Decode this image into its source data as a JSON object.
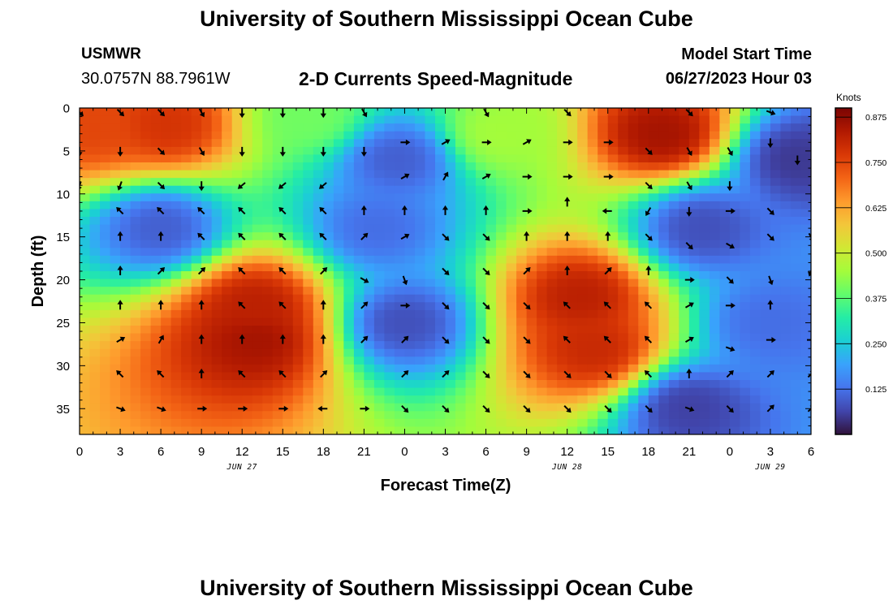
{
  "header": {
    "title": "University of Southern Mississippi Ocean Cube",
    "station": "USMWR",
    "coordinates": "30.0757N  88.7961W",
    "subtitle": "2-D Currents Speed-Magnitude",
    "model_start_label": "Model Start Time",
    "model_start_value": "06/27/2023 Hour 03"
  },
  "footer": {
    "title": "University of Southern Mississippi Ocean Cube"
  },
  "colors": {
    "colormap": [
      "#30123b",
      "#4145ab",
      "#4675ed",
      "#39a2fc",
      "#1bcfd4",
      "#24eca6",
      "#61fc6c",
      "#a4fc3b",
      "#d1e834",
      "#f3c63a",
      "#fe9b2d",
      "#f36315",
      "#d93806",
      "#b11901",
      "#7a0403"
    ]
  },
  "chart_data": {
    "type": "heatmap",
    "xlabel": "Forecast Time(Z)",
    "ylabel": "Depth (ft)",
    "x_ticks": [
      "0",
      "3",
      "6",
      "9",
      "12",
      "15",
      "18",
      "21",
      "0",
      "3",
      "6",
      "9",
      "12",
      "15",
      "18",
      "21",
      "0",
      "3",
      "6"
    ],
    "x_range_hours": [
      0,
      54
    ],
    "date_labels": [
      {
        "text": "JUN 27",
        "at_hour": 12
      },
      {
        "text": "JUN 28",
        "at_hour": 36
      },
      {
        "text": "JUN 29",
        "at_hour": 51
      }
    ],
    "y_ticks": [
      "0",
      "5",
      "10",
      "15",
      "20",
      "25",
      "30",
      "35"
    ],
    "y_range_ft": [
      0,
      38
    ],
    "colorbar": {
      "label": "Knots",
      "ticks": [
        "0.125",
        "0.250",
        "0.375",
        "0.500",
        "0.625",
        "0.750",
        "0.875"
      ],
      "range": [
        0,
        0.9
      ]
    },
    "speed_hotspots": [
      {
        "hour": 1,
        "depth": 2,
        "speed": 0.75
      },
      {
        "hour": 6.5,
        "depth": 2,
        "speed": 0.78
      },
      {
        "hour": 17,
        "depth": 1,
        "speed": 0.4
      },
      {
        "hour": 6,
        "depth": 14,
        "speed": 0.1
      },
      {
        "hour": 13,
        "depth": 23,
        "speed": 0.82
      },
      {
        "hour": 13,
        "depth": 27,
        "speed": 0.85
      },
      {
        "hour": 22,
        "depth": 14,
        "speed": 0.12
      },
      {
        "hour": 23.5,
        "depth": 6,
        "speed": 0.1
      },
      {
        "hour": 24,
        "depth": 25,
        "speed": 0.08
      },
      {
        "hour": 31,
        "depth": 3,
        "speed": 0.45
      },
      {
        "hour": 37,
        "depth": 22,
        "speed": 0.82
      },
      {
        "hour": 38,
        "depth": 28,
        "speed": 0.8
      },
      {
        "hour": 43,
        "depth": 3,
        "speed": 0.85
      },
      {
        "hour": 46,
        "depth": 14,
        "speed": 0.08
      },
      {
        "hour": 45,
        "depth": 35,
        "speed": 0.06
      },
      {
        "hour": 53,
        "depth": 6,
        "speed": 0.05
      },
      {
        "hour": 51,
        "depth": 25,
        "speed": 0.12
      }
    ],
    "vectors": [
      {
        "hour": 0,
        "depth": 0.5,
        "angle": 135
      },
      {
        "hour": 3,
        "depth": 0.5,
        "angle": 135
      },
      {
        "hour": 6,
        "depth": 0.5,
        "angle": 135
      },
      {
        "hour": 9,
        "depth": 0.5,
        "angle": 150
      },
      {
        "hour": 12,
        "depth": 0.5,
        "angle": 180
      },
      {
        "hour": 15,
        "depth": 0.5,
        "angle": 180
      },
      {
        "hour": 18,
        "depth": 0.5,
        "angle": 180
      },
      {
        "hour": 21,
        "depth": 0.5,
        "angle": 150
      },
      {
        "hour": 30,
        "depth": 0.5,
        "angle": 150
      },
      {
        "hour": 36,
        "depth": 0.5,
        "angle": 135
      },
      {
        "hour": 45,
        "depth": 0.5,
        "angle": 135
      },
      {
        "hour": 51,
        "depth": 0.5,
        "angle": 110
      },
      {
        "hour": 0,
        "depth": 5,
        "angle": 180
      },
      {
        "hour": 3,
        "depth": 5,
        "angle": 180
      },
      {
        "hour": 6,
        "depth": 5,
        "angle": 135
      },
      {
        "hour": 9,
        "depth": 5,
        "angle": 150
      },
      {
        "hour": 12,
        "depth": 5,
        "angle": 180
      },
      {
        "hour": 15,
        "depth": 5,
        "angle": 180
      },
      {
        "hour": 18,
        "depth": 5,
        "angle": 180
      },
      {
        "hour": 21,
        "depth": 5,
        "angle": 180
      },
      {
        "hour": 24,
        "depth": 4,
        "angle": 90
      },
      {
        "hour": 27,
        "depth": 4,
        "angle": 60
      },
      {
        "hour": 30,
        "depth": 4,
        "angle": 90
      },
      {
        "hour": 33,
        "depth": 4,
        "angle": 60
      },
      {
        "hour": 36,
        "depth": 4,
        "angle": 90
      },
      {
        "hour": 39,
        "depth": 4,
        "angle": 90
      },
      {
        "hour": 42,
        "depth": 5,
        "angle": 135
      },
      {
        "hour": 45,
        "depth": 5,
        "angle": 150
      },
      {
        "hour": 48,
        "depth": 5,
        "angle": 150
      },
      {
        "hour": 51,
        "depth": 4,
        "angle": 180
      },
      {
        "hour": 53,
        "depth": 6,
        "angle": 180
      },
      {
        "hour": 0,
        "depth": 9,
        "angle": 200
      },
      {
        "hour": 3,
        "depth": 9,
        "angle": 200
      },
      {
        "hour": 6,
        "depth": 9,
        "angle": 135
      },
      {
        "hour": 9,
        "depth": 9,
        "angle": 180
      },
      {
        "hour": 12,
        "depth": 9,
        "angle": 230
      },
      {
        "hour": 15,
        "depth": 9,
        "angle": 230
      },
      {
        "hour": 18,
        "depth": 9,
        "angle": 230
      },
      {
        "hour": 24,
        "depth": 8,
        "angle": 60
      },
      {
        "hour": 27,
        "depth": 8,
        "angle": 30
      },
      {
        "hour": 30,
        "depth": 8,
        "angle": 60
      },
      {
        "hour": 33,
        "depth": 8,
        "angle": 90
      },
      {
        "hour": 36,
        "depth": 8,
        "angle": 90
      },
      {
        "hour": 39,
        "depth": 8,
        "angle": 90
      },
      {
        "hour": 42,
        "depth": 9,
        "angle": 135
      },
      {
        "hour": 45,
        "depth": 9,
        "angle": 150
      },
      {
        "hour": 48,
        "depth": 9,
        "angle": 180
      },
      {
        "hour": 3,
        "depth": 12,
        "angle": 315
      },
      {
        "hour": 6,
        "depth": 12,
        "angle": 315
      },
      {
        "hour": 9,
        "depth": 12,
        "angle": 315
      },
      {
        "hour": 12,
        "depth": 12,
        "angle": 315
      },
      {
        "hour": 15,
        "depth": 12,
        "angle": 315
      },
      {
        "hour": 18,
        "depth": 12,
        "angle": 315
      },
      {
        "hour": 21,
        "depth": 12,
        "angle": 0
      },
      {
        "hour": 24,
        "depth": 12,
        "angle": 0
      },
      {
        "hour": 27,
        "depth": 12,
        "angle": 0
      },
      {
        "hour": 30,
        "depth": 12,
        "angle": 0
      },
      {
        "hour": 33,
        "depth": 12,
        "angle": 90
      },
      {
        "hour": 36,
        "depth": 11,
        "angle": 0
      },
      {
        "hour": 39,
        "depth": 12,
        "angle": 270
      },
      {
        "hour": 42,
        "depth": 12,
        "angle": 210
      },
      {
        "hour": 45,
        "depth": 12,
        "angle": 180
      },
      {
        "hour": 48,
        "depth": 12,
        "angle": 90
      },
      {
        "hour": 51,
        "depth": 12,
        "angle": 135
      },
      {
        "hour": 3,
        "depth": 15,
        "angle": 0
      },
      {
        "hour": 6,
        "depth": 15,
        "angle": 0
      },
      {
        "hour": 9,
        "depth": 15,
        "angle": 315
      },
      {
        "hour": 12,
        "depth": 15,
        "angle": 315
      },
      {
        "hour": 15,
        "depth": 15,
        "angle": 315
      },
      {
        "hour": 18,
        "depth": 15,
        "angle": 315
      },
      {
        "hour": 21,
        "depth": 15,
        "angle": 45
      },
      {
        "hour": 24,
        "depth": 15,
        "angle": 60
      },
      {
        "hour": 27,
        "depth": 15,
        "angle": 135
      },
      {
        "hour": 30,
        "depth": 15,
        "angle": 135
      },
      {
        "hour": 33,
        "depth": 15,
        "angle": 0
      },
      {
        "hour": 36,
        "depth": 15,
        "angle": 0
      },
      {
        "hour": 39,
        "depth": 15,
        "angle": 0
      },
      {
        "hour": 42,
        "depth": 15,
        "angle": 135
      },
      {
        "hour": 45,
        "depth": 16,
        "angle": 135
      },
      {
        "hour": 48,
        "depth": 16,
        "angle": 120
      },
      {
        "hour": 51,
        "depth": 15,
        "angle": 135
      },
      {
        "hour": 54,
        "depth": 15,
        "angle": 150
      },
      {
        "hour": 3,
        "depth": 19,
        "angle": 0
      },
      {
        "hour": 6,
        "depth": 19,
        "angle": 45
      },
      {
        "hour": 9,
        "depth": 19,
        "angle": 45
      },
      {
        "hour": 12,
        "depth": 19,
        "angle": 315
      },
      {
        "hour": 15,
        "depth": 19,
        "angle": 315
      },
      {
        "hour": 18,
        "depth": 19,
        "angle": 45
      },
      {
        "hour": 21,
        "depth": 20,
        "angle": 120
      },
      {
        "hour": 24,
        "depth": 20,
        "angle": 160
      },
      {
        "hour": 27,
        "depth": 19,
        "angle": 135
      },
      {
        "hour": 30,
        "depth": 19,
        "angle": 135
      },
      {
        "hour": 33,
        "depth": 19,
        "angle": 45
      },
      {
        "hour": 36,
        "depth": 19,
        "angle": 0
      },
      {
        "hour": 39,
        "depth": 19,
        "angle": 45
      },
      {
        "hour": 42,
        "depth": 19,
        "angle": 0
      },
      {
        "hour": 45,
        "depth": 20,
        "angle": 90
      },
      {
        "hour": 48,
        "depth": 20,
        "angle": 135
      },
      {
        "hour": 51,
        "depth": 20,
        "angle": 160
      },
      {
        "hour": 54,
        "depth": 19,
        "angle": 200
      },
      {
        "hour": 3,
        "depth": 23,
        "angle": 0
      },
      {
        "hour": 6,
        "depth": 23,
        "angle": 0
      },
      {
        "hour": 9,
        "depth": 23,
        "angle": 0
      },
      {
        "hour": 12,
        "depth": 23,
        "angle": 315
      },
      {
        "hour": 15,
        "depth": 23,
        "angle": 315
      },
      {
        "hour": 18,
        "depth": 23,
        "angle": 0
      },
      {
        "hour": 21,
        "depth": 23,
        "angle": 45
      },
      {
        "hour": 24,
        "depth": 23,
        "angle": 90
      },
      {
        "hour": 27,
        "depth": 23,
        "angle": 135
      },
      {
        "hour": 30,
        "depth": 23,
        "angle": 135
      },
      {
        "hour": 33,
        "depth": 23,
        "angle": 135
      },
      {
        "hour": 36,
        "depth": 23,
        "angle": 315
      },
      {
        "hour": 39,
        "depth": 23,
        "angle": 315
      },
      {
        "hour": 42,
        "depth": 23,
        "angle": 315
      },
      {
        "hour": 45,
        "depth": 23,
        "angle": 60
      },
      {
        "hour": 48,
        "depth": 23,
        "angle": 90
      },
      {
        "hour": 51,
        "depth": 23,
        "angle": 0
      },
      {
        "hour": 3,
        "depth": 27,
        "angle": 60
      },
      {
        "hour": 6,
        "depth": 27,
        "angle": 30
      },
      {
        "hour": 9,
        "depth": 27,
        "angle": 0
      },
      {
        "hour": 12,
        "depth": 27,
        "angle": 0
      },
      {
        "hour": 15,
        "depth": 27,
        "angle": 0
      },
      {
        "hour": 18,
        "depth": 27,
        "angle": 0
      },
      {
        "hour": 21,
        "depth": 27,
        "angle": 45
      },
      {
        "hour": 24,
        "depth": 27,
        "angle": 45
      },
      {
        "hour": 27,
        "depth": 27,
        "angle": 135
      },
      {
        "hour": 30,
        "depth": 27,
        "angle": 135
      },
      {
        "hour": 33,
        "depth": 27,
        "angle": 135
      },
      {
        "hour": 36,
        "depth": 27,
        "angle": 315
      },
      {
        "hour": 39,
        "depth": 27,
        "angle": 315
      },
      {
        "hour": 42,
        "depth": 27,
        "angle": 315
      },
      {
        "hour": 45,
        "depth": 27,
        "angle": 60
      },
      {
        "hour": 48,
        "depth": 28,
        "angle": 110
      },
      {
        "hour": 51,
        "depth": 27,
        "angle": 90
      },
      {
        "hour": 54,
        "depth": 27,
        "angle": 90
      },
      {
        "hour": 3,
        "depth": 31,
        "angle": 315
      },
      {
        "hour": 6,
        "depth": 31,
        "angle": 315
      },
      {
        "hour": 9,
        "depth": 31,
        "angle": 0
      },
      {
        "hour": 12,
        "depth": 31,
        "angle": 315
      },
      {
        "hour": 15,
        "depth": 31,
        "angle": 315
      },
      {
        "hour": 18,
        "depth": 31,
        "angle": 45
      },
      {
        "hour": 24,
        "depth": 31,
        "angle": 45
      },
      {
        "hour": 27,
        "depth": 31,
        "angle": 45
      },
      {
        "hour": 30,
        "depth": 31,
        "angle": 135
      },
      {
        "hour": 33,
        "depth": 31,
        "angle": 135
      },
      {
        "hour": 36,
        "depth": 31,
        "angle": 135
      },
      {
        "hour": 39,
        "depth": 31,
        "angle": 135
      },
      {
        "hour": 42,
        "depth": 31,
        "angle": 315
      },
      {
        "hour": 45,
        "depth": 31,
        "angle": 0
      },
      {
        "hour": 48,
        "depth": 31,
        "angle": 45
      },
      {
        "hour": 51,
        "depth": 31,
        "angle": 45
      },
      {
        "hour": 54,
        "depth": 31,
        "angle": 45
      },
      {
        "hour": 3,
        "depth": 35,
        "angle": 110
      },
      {
        "hour": 6,
        "depth": 35,
        "angle": 110
      },
      {
        "hour": 9,
        "depth": 35,
        "angle": 90
      },
      {
        "hour": 12,
        "depth": 35,
        "angle": 90
      },
      {
        "hour": 15,
        "depth": 35,
        "angle": 90
      },
      {
        "hour": 18,
        "depth": 35,
        "angle": 270
      },
      {
        "hour": 21,
        "depth": 35,
        "angle": 90
      },
      {
        "hour": 24,
        "depth": 35,
        "angle": 135
      },
      {
        "hour": 27,
        "depth": 35,
        "angle": 135
      },
      {
        "hour": 30,
        "depth": 35,
        "angle": 135
      },
      {
        "hour": 33,
        "depth": 35,
        "angle": 135
      },
      {
        "hour": 36,
        "depth": 35,
        "angle": 135
      },
      {
        "hour": 39,
        "depth": 35,
        "angle": 135
      },
      {
        "hour": 42,
        "depth": 35,
        "angle": 135
      },
      {
        "hour": 45,
        "depth": 35,
        "angle": 110
      },
      {
        "hour": 48,
        "depth": 35,
        "angle": 135
      },
      {
        "hour": 51,
        "depth": 35,
        "angle": 45
      },
      {
        "hour": 54,
        "depth": 35,
        "angle": 45
      }
    ]
  }
}
